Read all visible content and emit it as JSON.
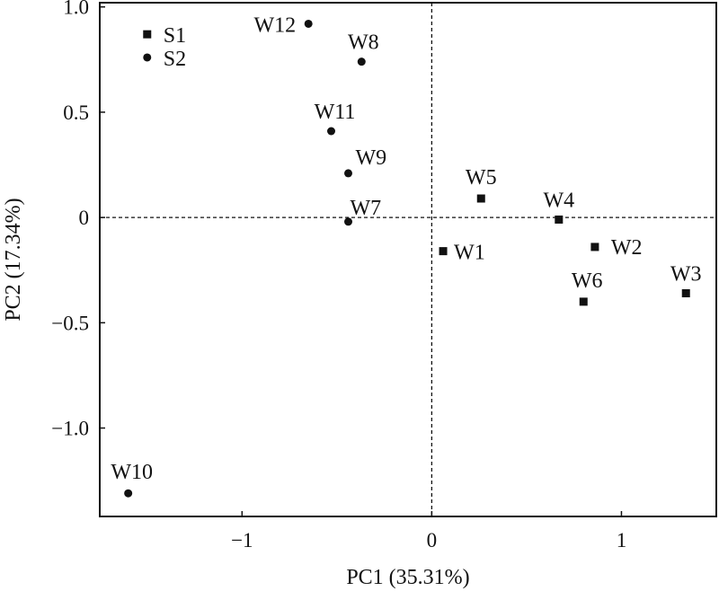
{
  "chart_data": {
    "type": "scatter",
    "title": "",
    "xlabel": "PC1 (35.31%)",
    "ylabel": "PC2 (17.34%)",
    "xlim": [
      -1.75,
      1.5
    ],
    "ylim": [
      -1.42,
      1.02
    ],
    "xticks": [
      -1,
      0,
      1
    ],
    "xtick_labels": [
      "−1",
      "0",
      "1"
    ],
    "yticks": [
      1.0,
      0.5,
      0,
      -0.5,
      -1.0
    ],
    "ytick_labels": [
      "1.0",
      "0.5",
      "0",
      "−0.5",
      "−1.0"
    ],
    "reference_lines": {
      "x": 0,
      "y": 0,
      "style": "dashed"
    },
    "grid": false,
    "legend": "none",
    "marker_color": "#111111",
    "points": [
      {
        "label": "S1",
        "x": -1.5,
        "y": 0.87,
        "marker": "square"
      },
      {
        "label": "S2",
        "x": -1.5,
        "y": 0.76,
        "marker": "circle"
      },
      {
        "label": "W12",
        "x": -0.65,
        "y": 0.92,
        "marker": "circle"
      },
      {
        "label": "W8",
        "x": -0.37,
        "y": 0.74,
        "marker": "circle"
      },
      {
        "label": "W11",
        "x": -0.53,
        "y": 0.41,
        "marker": "circle"
      },
      {
        "label": "W9",
        "x": -0.44,
        "y": 0.21,
        "marker": "circle"
      },
      {
        "label": "W7",
        "x": -0.44,
        "y": -0.02,
        "marker": "circle"
      },
      {
        "label": "W5",
        "x": 0.26,
        "y": 0.09,
        "marker": "square"
      },
      {
        "label": "W4",
        "x": 0.67,
        "y": -0.01,
        "marker": "square"
      },
      {
        "label": "W1",
        "x": 0.06,
        "y": -0.16,
        "marker": "square"
      },
      {
        "label": "W2",
        "x": 0.86,
        "y": -0.14,
        "marker": "square"
      },
      {
        "label": "W6",
        "x": 0.8,
        "y": -0.4,
        "marker": "square"
      },
      {
        "label": "W3",
        "x": 1.34,
        "y": -0.36,
        "marker": "square"
      },
      {
        "label": "W10",
        "x": -1.6,
        "y": -1.31,
        "marker": "circle"
      }
    ]
  }
}
